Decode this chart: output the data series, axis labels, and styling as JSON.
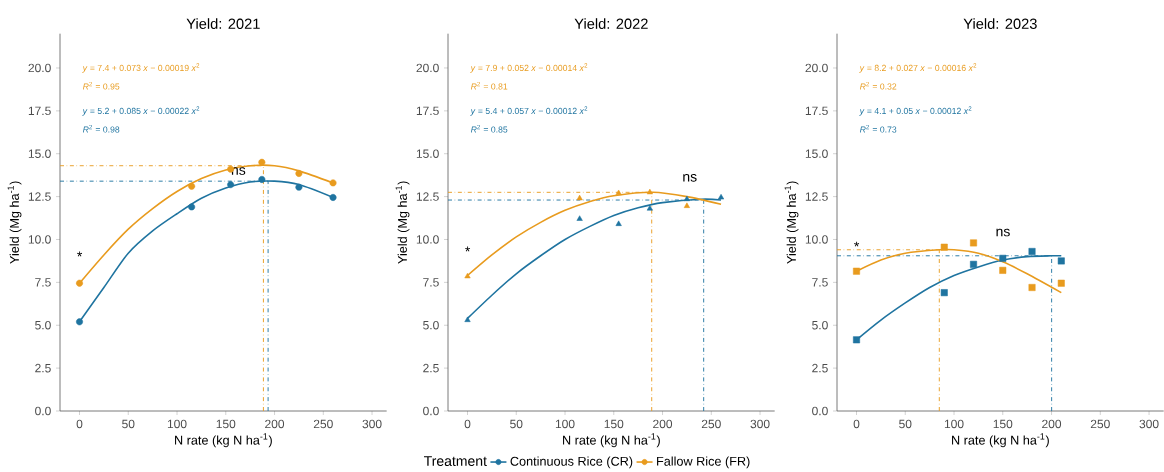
{
  "chart_data": [
    {
      "type": "scatter",
      "title": "Yield: 2021",
      "xlabel": "N rate (kg N ha$^{-1}$)",
      "ylabel": "Yield (Mg ha$^{-1}$)",
      "xlim": [
        -20,
        315
      ],
      "ylim": [
        0,
        22
      ],
      "xticks": [
        0,
        50,
        100,
        150,
        200,
        250,
        300
      ],
      "yticks": [
        {
          "value": 0,
          "label": "0.0"
        },
        {
          "value": 2.5,
          "label": "2.5"
        },
        {
          "value": 5,
          "label": "5.0"
        },
        {
          "value": 7.5,
          "label": "7.5"
        },
        {
          "value": 10,
          "label": "10.0"
        },
        {
          "value": 12.5,
          "label": "12.5"
        },
        {
          "value": 15,
          "label": "15.0"
        },
        {
          "value": 17.5,
          "label": "17.5"
        },
        {
          "value": 20,
          "label": "20.0"
        }
      ],
      "series": [
        {
          "marker": "circle",
          "color": "#1f74a0",
          "x": [
            0,
            115,
            155,
            187,
            225,
            260
          ],
          "values": [
            5.2,
            11.9,
            13.2,
            13.5,
            13.05,
            12.45
          ]
        },
        {
          "marker": "circle",
          "color": "#e89b1e",
          "x": [
            0,
            115,
            155,
            187,
            225,
            260
          ],
          "values": [
            7.45,
            13.1,
            14.1,
            14.5,
            13.85,
            13.3
          ]
        },
        {
          "type": "line",
          "color": "#1f74a0",
          "x": [
            0,
            25,
            50,
            75,
            100,
            125,
            150,
            175,
            200,
            225,
            260
          ],
          "values": [
            5.2,
            7.2,
            9.2,
            10.5,
            11.5,
            12.4,
            13.0,
            13.35,
            13.4,
            13.2,
            12.45
          ]
        },
        {
          "type": "line",
          "color": "#e89b1e",
          "x": [
            0,
            25,
            50,
            75,
            100,
            125,
            150,
            175,
            200,
            225,
            260
          ],
          "values": [
            7.45,
            9.1,
            10.6,
            11.8,
            12.8,
            13.55,
            14.05,
            14.3,
            14.3,
            14.0,
            13.3
          ]
        }
      ],
      "ref_lines": [
        {
          "axis": "y",
          "value": 14.3,
          "color": "#e89b1e",
          "line_style": "dashdot"
        },
        {
          "axis": "x",
          "value": 188.6,
          "color": "#e89b1e",
          "line_style": "dashdot"
        },
        {
          "axis": "y",
          "value": 13.4,
          "color": "#1f74a0",
          "line_style": "dashdot"
        },
        {
          "axis": "x",
          "value": 193.4,
          "color": "#1f74a0",
          "line_style": "dashdot"
        }
      ],
      "annotations": [
        "*y* = 7.4 + 0.073 *x* − 0.00019 *x*$^{2}$",
        "*R*$^{2}$ = 0.95",
        "*y* = 5.2 + 0.085 *x* − 0.00022 *x*$^{2}$",
        "*R*$^{2}$ = 0.98",
        "*",
        "ns"
      ]
    },
    {
      "type": "scatter",
      "title": "Yield: 2022",
      "xlabel": "N rate (kg N ha$^{-1}$)",
      "ylabel": "Yield (Mg ha$^{-1}$)",
      "xlim": [
        -20,
        315
      ],
      "ylim": [
        0,
        22
      ],
      "xticks": [
        0,
        50,
        100,
        150,
        200,
        250,
        300
      ],
      "yticks": [
        {
          "value": 0,
          "label": "0.0"
        },
        {
          "value": 2.5,
          "label": "2.5"
        },
        {
          "value": 5,
          "label": "5.0"
        },
        {
          "value": 7.5,
          "label": "7.5"
        },
        {
          "value": 10,
          "label": "10.0"
        },
        {
          "value": 12.5,
          "label": "12.5"
        },
        {
          "value": 15,
          "label": "15.0"
        },
        {
          "value": 17.5,
          "label": "17.5"
        },
        {
          "value": 20,
          "label": "20.0"
        }
      ],
      "legend": "bottom",
      "legend_title": "Treatment",
      "series": [
        {
          "name": "Continuous Rice (CR)",
          "marker": "triangle",
          "color": "#1f74a0",
          "x": [
            0,
            115,
            155,
            187,
            225,
            260
          ],
          "values": [
            5.3,
            11.2,
            10.9,
            11.8,
            12.35,
            12.45
          ]
        },
        {
          "name": "Fallow Rice (FR)",
          "marker": "triangle",
          "color": "#e89b1e",
          "x": [
            0,
            115,
            155,
            187,
            225
          ],
          "values": [
            7.85,
            12.4,
            12.7,
            12.75,
            11.95
          ]
        },
        {
          "type": "line",
          "color": "#1f74a0",
          "x": [
            0,
            25,
            50,
            75,
            100,
            125,
            150,
            175,
            200,
            240,
            260
          ],
          "values": [
            5.4,
            6.75,
            8.0,
            9.05,
            10.0,
            10.75,
            11.4,
            11.85,
            12.15,
            12.35,
            12.3
          ]
        },
        {
          "type": "line",
          "color": "#e89b1e",
          "x": [
            0,
            25,
            50,
            75,
            100,
            125,
            150,
            190,
            225,
            260
          ],
          "values": [
            7.9,
            9.1,
            10.15,
            11.0,
            11.7,
            12.2,
            12.55,
            12.75,
            12.5,
            12.05
          ]
        }
      ],
      "ref_lines": [
        {
          "axis": "y",
          "value": 12.75,
          "color": "#e89b1e",
          "line_style": "dashdot"
        },
        {
          "axis": "x",
          "value": 188.9,
          "color": "#e89b1e",
          "line_style": "dashdot"
        },
        {
          "axis": "y",
          "value": 12.3,
          "color": "#1f74a0",
          "line_style": "dashdot"
        },
        {
          "axis": "x",
          "value": 242.2,
          "color": "#1f74a0",
          "line_style": "dashdot"
        }
      ],
      "annotations": [
        "*y* = 7.9 + 0.052 *x* − 0.00014 *x*$^{2}$",
        "*R*$^{2}$ = 0.81",
        "*y* = 5.4 + 0.057 *x* − 0.00012 *x*$^{2}$",
        "*R*$^{2}$ = 0.85",
        "*",
        "ns"
      ]
    },
    {
      "type": "scatter",
      "title": "Yield: 2023",
      "xlabel": "N rate (kg N ha$^{-1}$)",
      "ylabel": "Yield (Mg ha$^{-1}$)",
      "xlim": [
        -20,
        315
      ],
      "ylim": [
        0,
        22
      ],
      "xticks": [
        0,
        50,
        100,
        150,
        200,
        250,
        300
      ],
      "yticks": [
        {
          "value": 0,
          "label": "0.0"
        },
        {
          "value": 2.5,
          "label": "2.5"
        },
        {
          "value": 5,
          "label": "5.0"
        },
        {
          "value": 7.5,
          "label": "7.5"
        },
        {
          "value": 10,
          "label": "10.0"
        },
        {
          "value": 12.5,
          "label": "12.5"
        },
        {
          "value": 15,
          "label": "15.0"
        },
        {
          "value": 17.5,
          "label": "17.5"
        },
        {
          "value": 20,
          "label": "20.0"
        }
      ],
      "series": [
        {
          "marker": "square",
          "color": "#1f74a0",
          "x": [
            0,
            90,
            120,
            150,
            180,
            210
          ],
          "values": [
            4.15,
            6.9,
            8.55,
            8.9,
            9.3,
            8.75
          ]
        },
        {
          "marker": "square",
          "color": "#e89b1e",
          "x": [
            0,
            90,
            120,
            150,
            180,
            210
          ],
          "values": [
            8.15,
            9.55,
            9.8,
            8.2,
            7.2,
            7.45
          ]
        },
        {
          "type": "line",
          "color": "#1f74a0",
          "x": [
            0,
            25,
            50,
            75,
            100,
            125,
            150,
            175,
            200,
            210
          ],
          "values": [
            4.15,
            5.3,
            6.3,
            7.2,
            7.9,
            8.4,
            8.8,
            9.0,
            9.05,
            9.05
          ]
        },
        {
          "type": "line",
          "color": "#e89b1e",
          "x": [
            0,
            25,
            50,
            85,
            100,
            125,
            150,
            175,
            210
          ],
          "values": [
            8.15,
            8.8,
            9.2,
            9.4,
            9.4,
            9.2,
            8.7,
            8.0,
            6.9
          ]
        }
      ],
      "ref_lines": [
        {
          "axis": "y",
          "value": 9.4,
          "color": "#e89b1e",
          "line_style": "dashdot"
        },
        {
          "axis": "x",
          "value": 84.9,
          "color": "#e89b1e",
          "line_style": "dashdot"
        },
        {
          "axis": "y",
          "value": 9.05,
          "color": "#1f74a0",
          "line_style": "dashdot"
        },
        {
          "axis": "x",
          "value": 200.1,
          "color": "#1f74a0",
          "line_style": "dashdot"
        }
      ],
      "annotations": [
        "*y* = 8.2 + 0.027 *x* − 0.00016 *x*$^{2}$",
        "*R*$^{2}$ = 0.32",
        "*y* = 4.1 + 0.05 *x* − 0.00012 *x*$^{2}$",
        "*R*$^{2}$ = 0.73",
        "*",
        "ns"
      ]
    }
  ]
}
